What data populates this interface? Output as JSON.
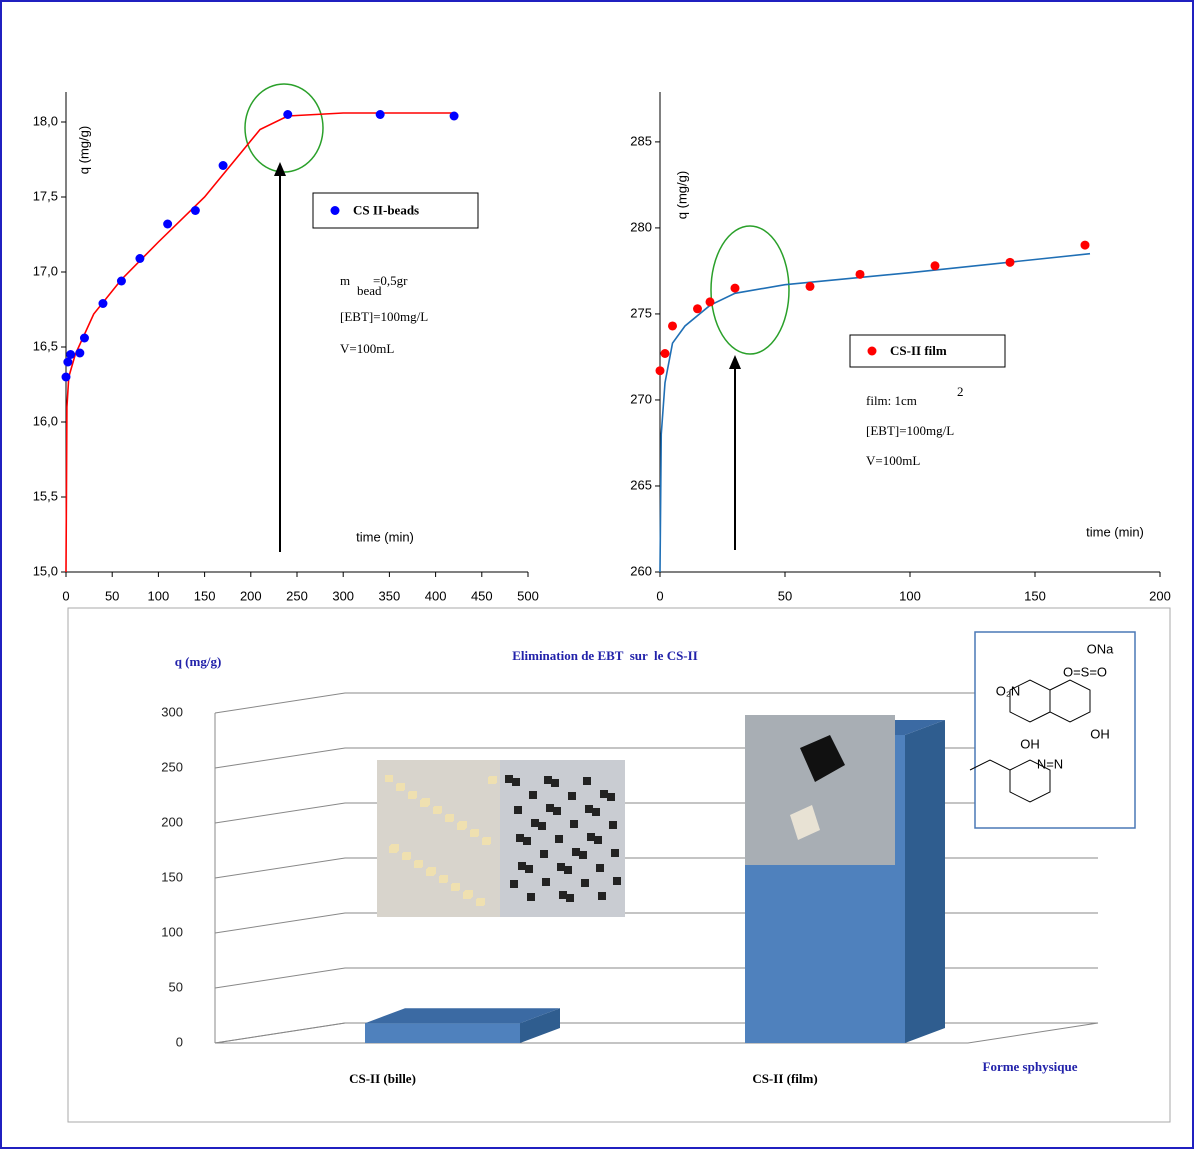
{
  "chart_data": [
    {
      "type": "scatter",
      "x_label": "time (min)",
      "y_label": "q (mg/g)",
      "xlim": [
        0,
        500
      ],
      "xticks": [
        0,
        50,
        100,
        150,
        200,
        250,
        300,
        350,
        400,
        450,
        500
      ],
      "ylim": [
        15,
        18.2
      ],
      "yticks": [
        {
          "value": 15,
          "label": "15,0"
        },
        {
          "value": 15.5,
          "label": "15,5"
        },
        {
          "value": 16,
          "label": "16,0"
        },
        {
          "value": 16.5,
          "label": "16,5"
        },
        {
          "value": 17,
          "label": "17,0"
        },
        {
          "value": 17.5,
          "label": "17,5"
        },
        {
          "value": 18,
          "label": "18,0"
        }
      ],
      "series": [
        {
          "name": "CS II-beads",
          "color": "#0000ff",
          "x": [
            0,
            2,
            5,
            15,
            20,
            40,
            60,
            80,
            110,
            140,
            170,
            240,
            340,
            420
          ],
          "values": [
            16.3,
            16.4,
            16.45,
            16.46,
            16.56,
            16.79,
            16.94,
            17.09,
            17.32,
            17.41,
            17.71,
            18.05,
            18.05,
            18.04
          ]
        }
      ],
      "fit": {
        "color": "#ff0000",
        "x": [
          0,
          1,
          3,
          10,
          30,
          60,
          100,
          150,
          190,
          210,
          240,
          300,
          420
        ],
        "values": [
          15,
          16.1,
          16.3,
          16.45,
          16.72,
          16.95,
          17.2,
          17.5,
          17.8,
          17.95,
          18.04,
          18.06,
          18.06
        ]
      },
      "annotations": [
        "m",
        "bead",
        "=0,5gr",
        "[EBT]=100mg/L",
        "V=100mL"
      ]
    },
    {
      "type": "scatter",
      "x_label": "time (min)",
      "y_label": "q (mg/g)",
      "xlim": [
        0,
        200
      ],
      "xticks": [
        0,
        50,
        100,
        150,
        200
      ],
      "ylim": [
        260,
        287.9
      ],
      "yticks": [
        260,
        265,
        270,
        275,
        280,
        285
      ],
      "series": [
        {
          "name": "CS-II film",
          "color": "#ff0000",
          "x": [
            0,
            2,
            5,
            15,
            20,
            30,
            60,
            80,
            110,
            140,
            170
          ],
          "values": [
            271.7,
            272.7,
            274.3,
            275.3,
            275.7,
            276.5,
            276.6,
            277.3,
            277.8,
            278,
            279
          ]
        }
      ],
      "fit": {
        "color": "#1f6fb5",
        "x": [
          0,
          0.5,
          2,
          5,
          10,
          20,
          30,
          50,
          100,
          172
        ],
        "values": [
          260,
          268,
          271,
          273.3,
          274.3,
          275.5,
          276.2,
          276.7,
          277.4,
          278.5
        ]
      },
      "annotations": [
        "film: 1cm",
        "2",
        "[EBT]=100mg/L",
        "V=100mL"
      ]
    },
    {
      "type": "bar3d",
      "title": "Elimination de EBT  sur  le CS-II",
      "y_label": "q (mg/g)",
      "x_label": "Forme sphysique",
      "categories": [
        "CS-II (bille)",
        "CS-II (film)"
      ],
      "values": [
        18,
        280
      ],
      "color": "#4f81bd",
      "ylim": [
        0,
        300
      ],
      "yticks": [
        0,
        50,
        100,
        150,
        200,
        250,
        300
      ],
      "structure_labels": [
        "ONa",
        "O=S=O",
        "O₂N",
        "OH",
        "OH",
        "N=N"
      ]
    }
  ]
}
